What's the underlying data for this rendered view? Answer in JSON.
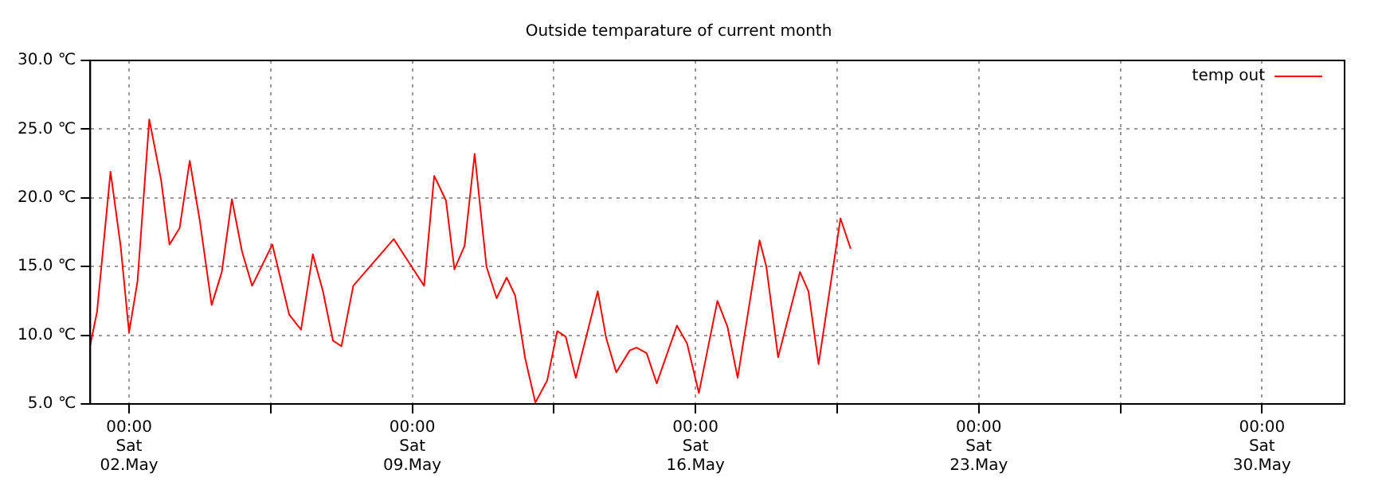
{
  "chart_data": {
    "type": "line",
    "title": "Outside temparature of current month",
    "series": [
      {
        "name": "temp out",
        "color": "#ff0000",
        "x": [
          "--05-01T01:00",
          "--05-01T05:00",
          "--05-01T13:00",
          "--05-01T19:00",
          "--05-02T00:00",
          "--05-02T05:00",
          "--05-02T12:00",
          "--05-02T19:00",
          "--05-03T00:00",
          "--05-03T06:00",
          "--05-03T12:00",
          "--05-03T18:00",
          "--05-04T01:00",
          "--05-04T07:00",
          "--05-04T13:00",
          "--05-04T19:00",
          "--05-05T01:00",
          "--05-05T13:00",
          "--05-05T23:00",
          "--05-06T06:00",
          "--05-06T13:00",
          "--05-06T19:00",
          "--05-07T01:00",
          "--05-07T06:00",
          "--05-07T13:00",
          "--05-08T13:00",
          "--05-09T07:00",
          "--05-09T13:00",
          "--05-09T20:00",
          "--05-10T01:00",
          "--05-10T07:00",
          "--05-10T13:00",
          "--05-10T20:00",
          "--05-11T02:00",
          "--05-11T08:00",
          "--05-11T13:00",
          "--05-11T19:00",
          "--05-12T01:00",
          "--05-12T08:00",
          "--05-12T14:00",
          "--05-12T19:00",
          "--05-13T01:00",
          "--05-13T14:00",
          "--05-13T19:00",
          "--05-14T01:00",
          "--05-14T09:00",
          "--05-14T13:00",
          "--05-14T19:00",
          "--05-15T01:00",
          "--05-15T13:00",
          "--05-15T19:00",
          "--05-16T02:00",
          "--05-16T13:00",
          "--05-16T19:00",
          "--05-17T01:00",
          "--05-17T14:00",
          "--05-17T18:00",
          "--05-18T01:00",
          "--05-18T14:00",
          "--05-18T19:00",
          "--05-19T01:00",
          "--05-19T14:00",
          "--05-19T20:00"
        ],
        "values": [
          9.3,
          11.7,
          21.9,
          16.5,
          10.2,
          13.9,
          25.7,
          21.3,
          16.6,
          17.8,
          22.7,
          18.3,
          12.2,
          14.6,
          19.9,
          16.1,
          13.6,
          16.6,
          11.5,
          10.4,
          15.9,
          13.2,
          9.6,
          9.2,
          13.6,
          17.0,
          13.6,
          21.6,
          19.8,
          14.8,
          16.5,
          23.2,
          15.0,
          12.7,
          14.2,
          12.9,
          8.3,
          5.1,
          6.7,
          10.3,
          9.9,
          6.9,
          13.2,
          9.8,
          7.3,
          8.9,
          9.1,
          8.7,
          6.5,
          10.7,
          9.4,
          5.8,
          12.5,
          10.6,
          6.9,
          16.9,
          15.0,
          8.4,
          14.6,
          13.2,
          7.9,
          18.5,
          16.3
        ]
      }
    ],
    "xlim": [
      "--05-01T01:00",
      "--06-01T01:00"
    ],
    "xticks": [
      {
        "value": "--05-02T00:00",
        "label": "00:00\nSat\n02.May"
      },
      {
        "value": "--05-05T12:00",
        "label": null
      },
      {
        "value": "--05-09T00:00",
        "label": "00:00\nSat\n09.May"
      },
      {
        "value": "--05-12T12:00",
        "label": null
      },
      {
        "value": "--05-16T00:00",
        "label": "00:00\nSat\n16.May"
      },
      {
        "value": "--05-19T12:00",
        "label": null
      },
      {
        "value": "--05-23T00:00",
        "label": "00:00\nSat\n23.May"
      },
      {
        "value": "--05-26T12:00",
        "label": null
      },
      {
        "value": "--05-30T00:00",
        "label": "00:00\nSat\n30.May"
      }
    ],
    "ylim": [
      5,
      30
    ],
    "yticks": [
      {
        "value": 5,
        "label": "5.0 ℃"
      },
      {
        "value": 10,
        "label": "10.0 ℃"
      },
      {
        "value": 15,
        "label": "15.0 ℃"
      },
      {
        "value": 20,
        "label": "20.0 ℃"
      },
      {
        "value": 25,
        "label": "25.0 ℃"
      },
      {
        "value": 30,
        "label": "30.0 ℃"
      }
    ],
    "grid": true,
    "legend": "top right",
    "marker": "none",
    "line_style": "solid"
  }
}
